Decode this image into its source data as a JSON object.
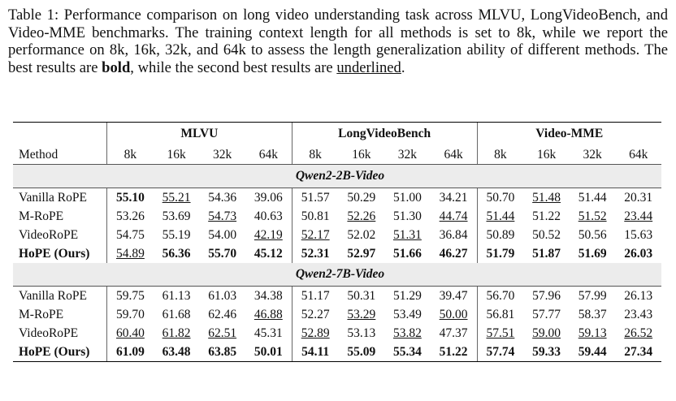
{
  "caption": [
    "Table 1: Performance comparison on long video understanding task across MLVU, LongVideoBench, and Video-MME benchmarks. The training context length for all methods is set to 8k, while we report the performance on 8k, 16k, 32k, and 64k to assess the length generalization ability of different methods. The best results are ",
    "bold",
    ", while the second best results are ",
    "underlined",
    "."
  ],
  "table": {
    "groups": [
      "MLVU",
      "LongVideoBench",
      "Video-MME"
    ],
    "columns": [
      "Method",
      "8k",
      "16k",
      "32k",
      "64k",
      "8k",
      "16k",
      "32k",
      "64k",
      "8k",
      "16k",
      "32k",
      "64k"
    ],
    "sections": [
      {
        "name": "Qwen2-2B-Video",
        "rows": [
          [
            "Vanilla RoPE",
            "55.10",
            "55.21",
            "54.36",
            "39.06",
            "51.57",
            "50.29",
            "51.00",
            "34.21",
            "50.70",
            "51.48",
            "51.44",
            "20.31"
          ],
          [
            "M-RoPE",
            "53.26",
            "53.69",
            "54.73",
            "40.63",
            "50.81",
            "52.26",
            "51.30",
            "44.74",
            "51.44",
            "51.22",
            "51.52",
            "23.44"
          ],
          [
            "VideoRoPE",
            "54.75",
            "55.19",
            "54.00",
            "42.19",
            "52.17",
            "52.02",
            "51.31",
            "36.84",
            "50.89",
            "50.52",
            "50.56",
            "15.63"
          ],
          [
            "HoPE (Ours)",
            "54.89",
            "56.36",
            "55.70",
            "45.12",
            "52.31",
            "52.97",
            "51.66",
            "46.27",
            "51.79",
            "51.87",
            "51.69",
            "26.03"
          ]
        ]
      },
      {
        "name": "Qwen2-7B-Video",
        "rows": [
          [
            "Vanilla RoPE",
            "59.75",
            "61.13",
            "61.03",
            "34.38",
            "51.17",
            "50.31",
            "51.29",
            "39.47",
            "56.70",
            "57.96",
            "57.99",
            "26.13"
          ],
          [
            "M-RoPE",
            "59.70",
            "61.68",
            "62.46",
            "46.88",
            "52.27",
            "53.29",
            "53.49",
            "50.00",
            "56.81",
            "57.77",
            "58.37",
            "23.43"
          ],
          [
            "VideoRoPE",
            "60.40",
            "61.82",
            "62.51",
            "45.31",
            "52.89",
            "53.13",
            "53.82",
            "47.37",
            "57.51",
            "59.00",
            "59.13",
            "26.52"
          ],
          [
            "HoPE (Ours)",
            "61.09",
            "63.48",
            "63.85",
            "50.01",
            "54.11",
            "55.09",
            "55.34",
            "51.22",
            "57.74",
            "59.33",
            "59.44",
            "27.34"
          ]
        ]
      }
    ]
  }
}
